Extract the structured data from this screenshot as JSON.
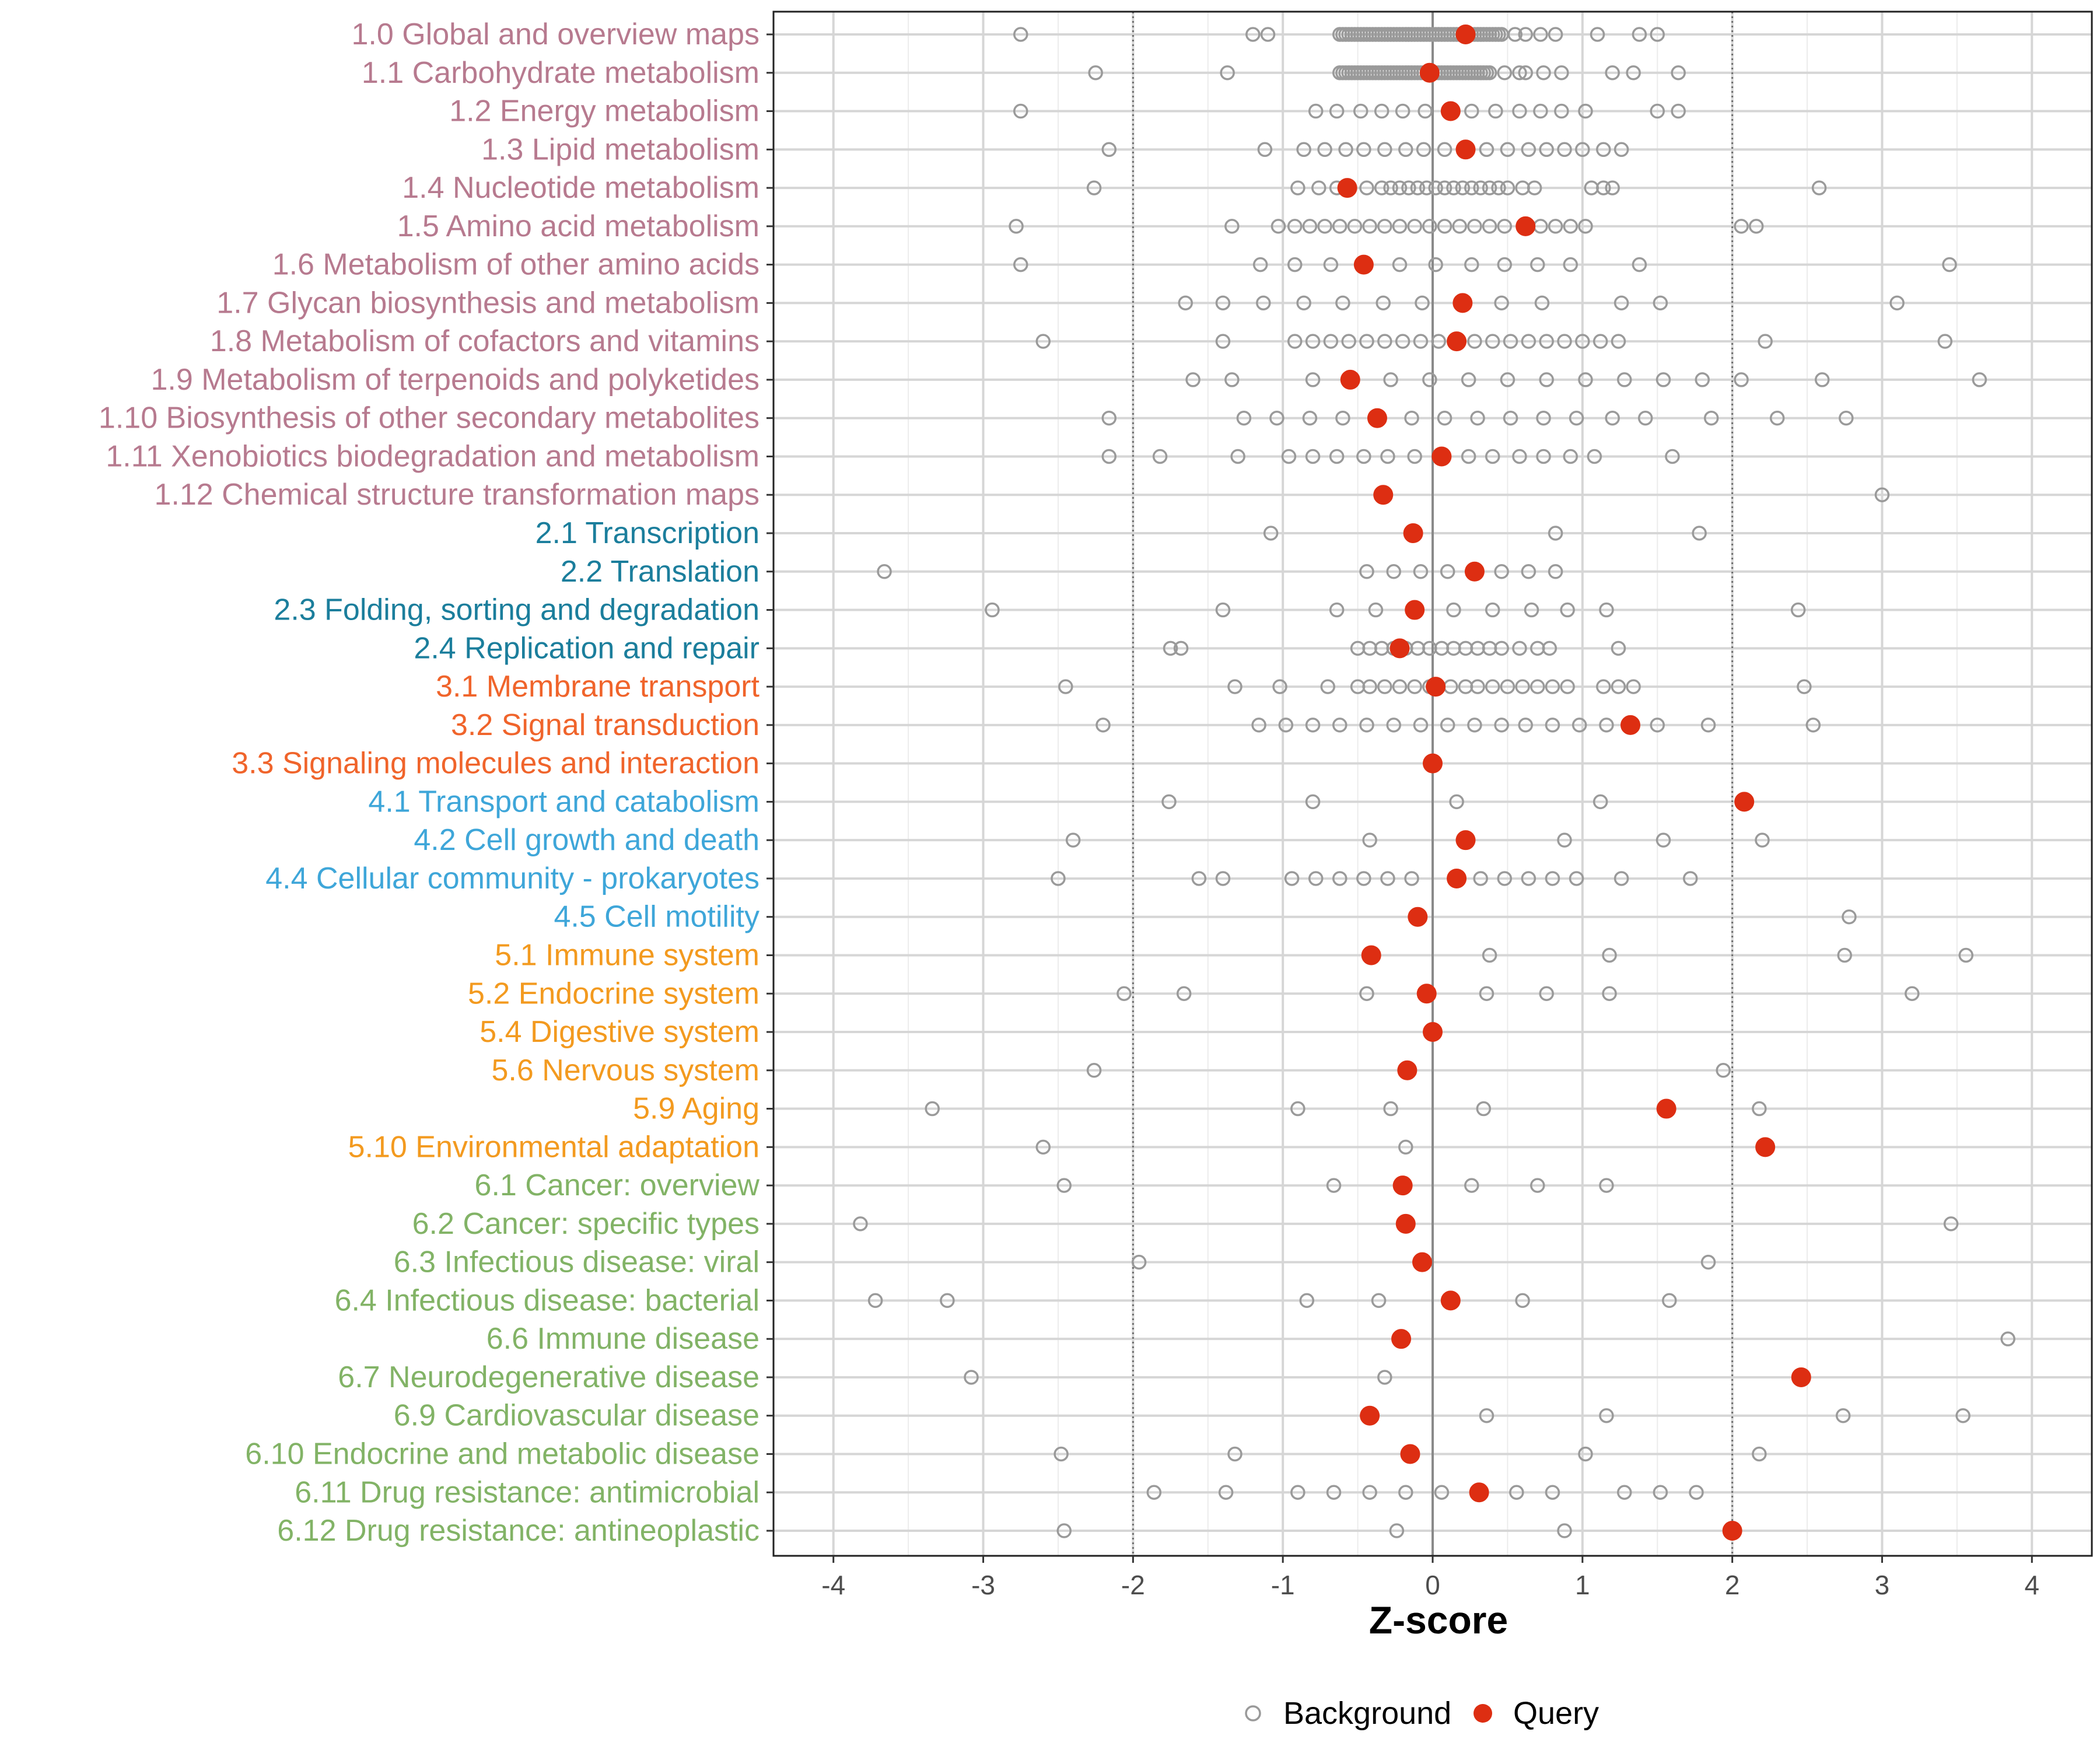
{
  "chart_data": {
    "type": "scatter",
    "xlabel": "Z-score",
    "ylabel": "",
    "xlim": [
      -4.4,
      4.4
    ],
    "x_ticks": [
      -4,
      -3,
      -2,
      -1,
      0,
      1,
      2,
      3,
      4
    ],
    "x_tick_labels": [
      "-4",
      "-3",
      "-2",
      "-1",
      "0",
      "1",
      "2",
      "3",
      "4"
    ],
    "reference_lines": [
      {
        "x": -2,
        "style": "dotted"
      },
      {
        "x": 0,
        "style": "solid"
      },
      {
        "x": 2,
        "style": "dotted"
      }
    ],
    "legend": {
      "placement": "bottom",
      "entries": [
        {
          "name": "Background",
          "marker": "open-circle",
          "color": "#9a9a9a"
        },
        {
          "name": "Query",
          "marker": "filled-circle",
          "color": "#dd2e12"
        }
      ]
    },
    "group_colors": {
      "1": "#b77a8f",
      "2": "#1b7e9c",
      "3": "#f0642b",
      "4": "#3ea6d9",
      "5": "#f39a1f",
      "6": "#82b366"
    },
    "categories": [
      {
        "label": "1.0 Global and overview maps",
        "group": "1",
        "query": 0.22,
        "background": [
          -2.75,
          -1.2,
          -1.1,
          -0.62,
          -0.6,
          -0.58,
          -0.56,
          -0.54,
          -0.52,
          -0.5,
          -0.48,
          -0.46,
          -0.44,
          -0.42,
          -0.4,
          -0.38,
          -0.36,
          -0.34,
          -0.32,
          -0.3,
          -0.28,
          -0.26,
          -0.24,
          -0.22,
          -0.2,
          -0.18,
          -0.16,
          -0.14,
          -0.12,
          -0.1,
          -0.08,
          -0.06,
          -0.04,
          -0.02,
          0.0,
          0.02,
          0.04,
          0.06,
          0.08,
          0.1,
          0.12,
          0.14,
          0.16,
          0.18,
          0.2,
          0.24,
          0.26,
          0.28,
          0.3,
          0.32,
          0.34,
          0.36,
          0.38,
          0.4,
          0.42,
          0.44,
          0.46,
          0.55,
          0.62,
          0.72,
          0.82,
          1.1,
          1.38,
          1.5
        ]
      },
      {
        "label": "1.1 Carbohydrate metabolism",
        "group": "1",
        "query": -0.02,
        "background": [
          -2.25,
          -1.37,
          -0.62,
          -0.6,
          -0.58,
          -0.56,
          -0.54,
          -0.52,
          -0.5,
          -0.48,
          -0.46,
          -0.44,
          -0.42,
          -0.4,
          -0.38,
          -0.36,
          -0.34,
          -0.32,
          -0.3,
          -0.28,
          -0.26,
          -0.24,
          -0.22,
          -0.2,
          -0.18,
          -0.16,
          -0.14,
          -0.12,
          -0.1,
          -0.08,
          -0.06,
          0.02,
          0.04,
          0.06,
          0.08,
          0.1,
          0.12,
          0.14,
          0.16,
          0.18,
          0.2,
          0.22,
          0.24,
          0.26,
          0.28,
          0.3,
          0.32,
          0.34,
          0.36,
          0.38,
          0.48,
          0.58,
          0.62,
          0.74,
          0.86,
          1.2,
          1.34,
          1.64
        ]
      },
      {
        "label": "1.2 Energy metabolism",
        "group": "1",
        "query": 0.12,
        "background": [
          -2.75,
          -0.78,
          -0.64,
          -0.48,
          -0.34,
          -0.2,
          -0.05,
          0.26,
          0.42,
          0.58,
          0.72,
          0.86,
          1.02,
          1.5,
          1.64
        ]
      },
      {
        "label": "1.3 Lipid metabolism",
        "group": "1",
        "query": 0.22,
        "background": [
          -2.16,
          -1.12,
          -0.86,
          -0.72,
          -0.58,
          -0.46,
          -0.32,
          -0.18,
          -0.06,
          0.08,
          0.36,
          0.5,
          0.64,
          0.76,
          0.88,
          1.0,
          1.14,
          1.26
        ]
      },
      {
        "label": "1.4 Nucleotide metabolism",
        "group": "1",
        "query": -0.57,
        "background": [
          -2.26,
          -0.9,
          -0.76,
          -0.64,
          -0.44,
          -0.34,
          -0.28,
          -0.22,
          -0.16,
          -0.1,
          -0.04,
          0.02,
          0.08,
          0.14,
          0.2,
          0.26,
          0.32,
          0.38,
          0.44,
          0.5,
          0.6,
          0.68,
          1.06,
          1.14,
          1.2,
          2.58
        ]
      },
      {
        "label": "1.5 Amino acid metabolism",
        "group": "1",
        "query": 0.62,
        "background": [
          -2.78,
          -1.34,
          -1.03,
          -0.92,
          -0.82,
          -0.72,
          -0.62,
          -0.52,
          -0.42,
          -0.32,
          -0.22,
          -0.12,
          -0.02,
          0.08,
          0.18,
          0.28,
          0.38,
          0.48,
          0.72,
          0.82,
          0.92,
          1.02,
          2.06,
          2.16
        ]
      },
      {
        "label": "1.6 Metabolism of other amino acids",
        "group": "1",
        "query": -0.46,
        "background": [
          -2.75,
          -1.15,
          -0.92,
          -0.68,
          -0.22,
          0.02,
          0.26,
          0.48,
          0.7,
          0.92,
          1.38,
          3.45
        ]
      },
      {
        "label": "1.7 Glycan biosynthesis and metabolism",
        "group": "1",
        "query": 0.2,
        "background": [
          -1.65,
          -1.4,
          -1.13,
          -0.86,
          -0.6,
          -0.33,
          -0.07,
          0.46,
          0.73,
          1.26,
          1.52,
          3.1
        ]
      },
      {
        "label": "1.8 Metabolism of cofactors and vitamins",
        "group": "1",
        "query": 0.16,
        "background": [
          -2.6,
          -1.4,
          -0.92,
          -0.8,
          -0.68,
          -0.56,
          -0.44,
          -0.32,
          -0.2,
          -0.08,
          0.04,
          0.28,
          0.4,
          0.52,
          0.64,
          0.76,
          0.88,
          1.0,
          1.12,
          1.24,
          2.22,
          3.42
        ]
      },
      {
        "label": "1.9 Metabolism of terpenoids and polyketides",
        "group": "1",
        "query": -0.55,
        "background": [
          -1.6,
          -1.34,
          -0.8,
          -0.28,
          -0.02,
          0.24,
          0.5,
          0.76,
          1.02,
          1.28,
          1.54,
          1.8,
          2.06,
          2.6,
          3.65
        ]
      },
      {
        "label": "1.10 Biosynthesis of other secondary metabolites",
        "group": "1",
        "query": -0.37,
        "background": [
          -2.16,
          -1.26,
          -1.04,
          -0.82,
          -0.6,
          -0.14,
          0.08,
          0.3,
          0.52,
          0.74,
          0.96,
          1.2,
          1.42,
          1.86,
          2.3,
          2.76
        ]
      },
      {
        "label": "1.11 Xenobiotics biodegradation and metabolism",
        "group": "1",
        "query": 0.06,
        "background": [
          -2.16,
          -1.82,
          -1.3,
          -0.96,
          -0.8,
          -0.64,
          -0.46,
          -0.3,
          -0.12,
          0.24,
          0.4,
          0.58,
          0.74,
          0.92,
          1.08,
          1.6
        ]
      },
      {
        "label": "1.12 Chemical structure transformation maps",
        "group": "1",
        "query": -0.33,
        "background": [
          3.0
        ]
      },
      {
        "label": "2.1 Transcription",
        "group": "2",
        "query": -0.13,
        "background": [
          -1.08,
          0.82,
          1.78
        ]
      },
      {
        "label": "2.2 Translation",
        "group": "2",
        "query": 0.28,
        "background": [
          -3.66,
          -0.44,
          -0.26,
          -0.08,
          0.1,
          0.46,
          0.64,
          0.82
        ]
      },
      {
        "label": "2.3 Folding, sorting and degradation",
        "group": "2",
        "query": -0.12,
        "background": [
          -2.94,
          -1.4,
          -0.64,
          -0.38,
          0.14,
          0.4,
          0.66,
          0.9,
          1.16,
          2.44
        ]
      },
      {
        "label": "2.4 Replication and repair",
        "group": "2",
        "query": -0.22,
        "background": [
          -1.75,
          -1.68,
          -0.5,
          -0.42,
          -0.34,
          -0.26,
          -0.18,
          -0.1,
          -0.02,
          0.06,
          0.14,
          0.22,
          0.3,
          0.38,
          0.46,
          0.58,
          0.7,
          0.78,
          1.24
        ]
      },
      {
        "label": "3.1 Membrane transport",
        "group": "3",
        "query": 0.02,
        "background": [
          -2.45,
          -1.32,
          -1.02,
          -0.7,
          -0.5,
          -0.42,
          -0.32,
          -0.22,
          -0.12,
          -0.02,
          0.12,
          0.22,
          0.3,
          0.4,
          0.5,
          0.6,
          0.7,
          0.8,
          0.9,
          1.14,
          1.24,
          1.34,
          2.48
        ]
      },
      {
        "label": "3.2 Signal transduction",
        "group": "3",
        "query": 1.32,
        "background": [
          -2.2,
          -1.16,
          -0.98,
          -0.8,
          -0.62,
          -0.44,
          -0.26,
          -0.08,
          0.1,
          0.28,
          0.46,
          0.62,
          0.8,
          0.98,
          1.16,
          1.5,
          1.84,
          2.54
        ]
      },
      {
        "label": "3.3 Signaling molecules and interaction",
        "group": "3",
        "query": 0.0,
        "background": []
      },
      {
        "label": "4.1 Transport and catabolism",
        "group": "4",
        "query": 2.08,
        "background": [
          -1.76,
          -0.8,
          0.16,
          1.12
        ]
      },
      {
        "label": "4.2 Cell growth and death",
        "group": "4",
        "query": 0.22,
        "background": [
          -2.4,
          -0.42,
          0.88,
          1.54,
          2.2
        ]
      },
      {
        "label": "4.4 Cellular community - prokaryotes",
        "group": "4",
        "query": 0.16,
        "background": [
          -2.5,
          -1.56,
          -1.4,
          -0.94,
          -0.78,
          -0.62,
          -0.46,
          -0.3,
          -0.14,
          0.32,
          0.48,
          0.64,
          0.8,
          0.96,
          1.26,
          1.72
        ]
      },
      {
        "label": "4.5 Cell motility",
        "group": "4",
        "query": -0.1,
        "background": [
          2.78
        ]
      },
      {
        "label": "5.1 Immune system",
        "group": "5",
        "query": -0.41,
        "background": [
          0.38,
          1.18,
          2.75,
          3.56
        ]
      },
      {
        "label": "5.2 Endocrine system",
        "group": "5",
        "query": -0.04,
        "background": [
          -2.06,
          -1.66,
          -0.44,
          0.36,
          0.76,
          1.18,
          3.2
        ]
      },
      {
        "label": "5.4 Digestive system",
        "group": "5",
        "query": 0.0,
        "background": []
      },
      {
        "label": "5.6 Nervous system",
        "group": "5",
        "query": -0.17,
        "background": [
          -2.26,
          1.94
        ]
      },
      {
        "label": "5.9 Aging",
        "group": "5",
        "query": 1.56,
        "background": [
          -3.34,
          -0.9,
          -0.28,
          0.34,
          2.18
        ]
      },
      {
        "label": "5.10 Environmental adaptation",
        "group": "5",
        "query": 2.22,
        "background": [
          -2.6,
          -0.18
        ]
      },
      {
        "label": "6.1 Cancer: overview",
        "group": "6",
        "query": -0.2,
        "background": [
          -2.46,
          -0.66,
          0.26,
          0.7,
          1.16
        ]
      },
      {
        "label": "6.2 Cancer: specific types",
        "group": "6",
        "query": -0.18,
        "background": [
          -3.82,
          3.46
        ]
      },
      {
        "label": "6.3 Infectious disease: viral",
        "group": "6",
        "query": -0.07,
        "background": [
          -1.96,
          1.84
        ]
      },
      {
        "label": "6.4 Infectious disease: bacterial",
        "group": "6",
        "query": 0.12,
        "background": [
          -3.72,
          -3.24,
          -0.84,
          -0.36,
          0.6,
          1.58
        ]
      },
      {
        "label": "6.6 Immune disease",
        "group": "6",
        "query": -0.21,
        "background": [
          3.84
        ]
      },
      {
        "label": "6.7 Neurodegenerative disease",
        "group": "6",
        "query": 2.46,
        "background": [
          -3.08,
          -0.32
        ]
      },
      {
        "label": "6.9 Cardiovascular disease",
        "group": "6",
        "query": -0.42,
        "background": [
          0.36,
          1.16,
          2.74,
          3.54
        ]
      },
      {
        "label": "6.10 Endocrine and metabolic disease",
        "group": "6",
        "query": -0.15,
        "background": [
          -2.48,
          -1.32,
          1.02,
          2.18
        ]
      },
      {
        "label": "6.11 Drug resistance: antimicrobial",
        "group": "6",
        "query": 0.31,
        "background": [
          -1.86,
          -1.38,
          -0.9,
          -0.66,
          -0.42,
          -0.18,
          0.06,
          0.56,
          0.8,
          1.28,
          1.52,
          1.76
        ]
      },
      {
        "label": "6.12 Drug resistance: antineoplastic",
        "group": "6",
        "query": 2.0,
        "background": [
          -2.46,
          -0.24,
          0.88
        ]
      }
    ]
  }
}
